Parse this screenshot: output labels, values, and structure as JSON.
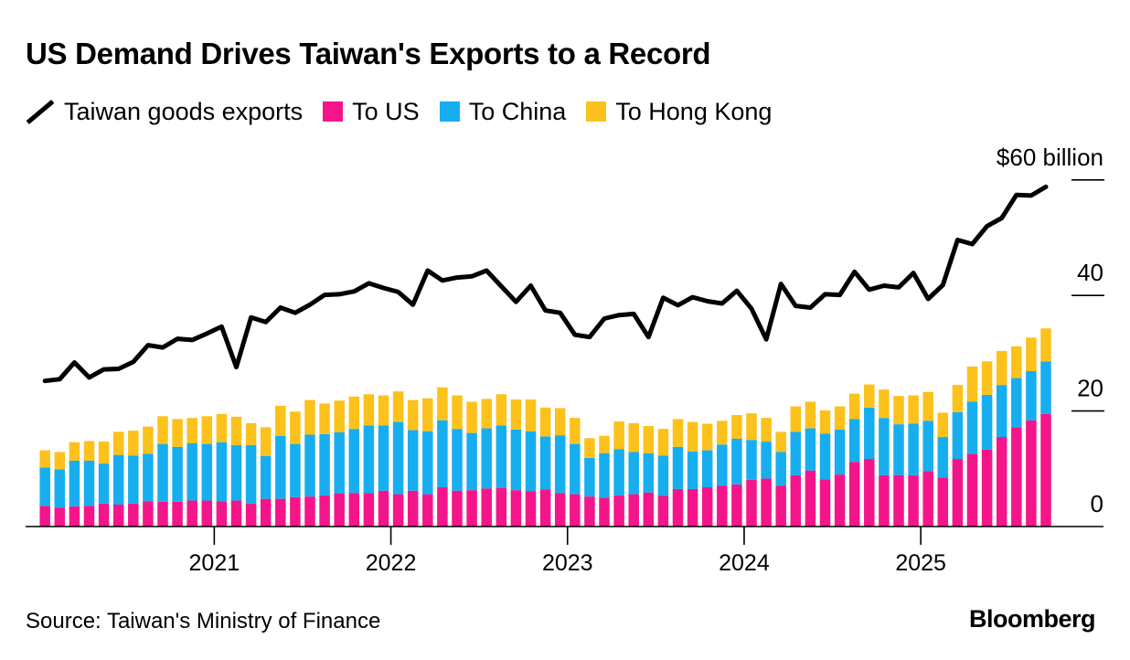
{
  "chart_data": {
    "type": "bar",
    "title": "US Demand Drives Taiwan's Exports to a Record",
    "xlabel": "",
    "ylabel": "",
    "ylim": [
      0,
      60
    ],
    "y_unit_label": "$60 billion",
    "y_ticks": [
      0,
      20,
      40,
      60
    ],
    "y_tick_labels": [
      "0",
      "20",
      "40",
      "$60 billion"
    ],
    "x_tick_labels": [
      "2021",
      "2022",
      "2023",
      "2024",
      "2025"
    ],
    "x_tick_month_index": [
      11,
      23,
      35,
      47,
      59
    ],
    "start_month": "2020-02",
    "stacked": true,
    "series": [
      {
        "name": "To US",
        "color": "#f5158a",
        "values": [
          3.6,
          3.3,
          3.5,
          3.6,
          4.0,
          3.8,
          4.0,
          4.4,
          4.3,
          4.3,
          4.5,
          4.5,
          4.4,
          4.5,
          4.0,
          4.8,
          4.8,
          5.1,
          5.2,
          5.4,
          5.7,
          5.8,
          5.8,
          6.2,
          5.6,
          6.2,
          5.6,
          6.8,
          6.2,
          6.3,
          6.6,
          6.7,
          6.3,
          6.1,
          6.4,
          5.8,
          5.6,
          5.2,
          5.0,
          5.4,
          5.6,
          5.9,
          5.3,
          6.5,
          6.5,
          6.8,
          7.1,
          7.3,
          8.1,
          8.3,
          7.1,
          8.9,
          9.7,
          8.2,
          9.0,
          11.2,
          11.7,
          8.9,
          8.9,
          8.9,
          9.6,
          8.5,
          11.7,
          12.6,
          13.3,
          15.5,
          17.2,
          18.4,
          19.5
        ]
      },
      {
        "name": "To China",
        "color": "#17aeef",
        "values": [
          6.6,
          6.6,
          7.9,
          7.8,
          6.9,
          8.6,
          8.3,
          8.2,
          10.0,
          9.5,
          9.9,
          9.8,
          10.2,
          9.6,
          10.1,
          7.4,
          10.9,
          9.2,
          10.7,
          10.6,
          10.6,
          11.1,
          11.7,
          11.3,
          12.5,
          10.5,
          10.9,
          11.6,
          10.7,
          9.9,
          10.4,
          10.8,
          10.5,
          10.4,
          9.2,
          10.0,
          8.7,
          6.7,
          7.7,
          8.0,
          7.3,
          6.8,
          7.0,
          7.3,
          6.5,
          6.4,
          7.1,
          7.9,
          6.9,
          6.4,
          5.8,
          7.5,
          7.3,
          7.9,
          7.8,
          7.4,
          8.9,
          9.9,
          8.8,
          8.9,
          8.7,
          7.0,
          8.1,
          9.0,
          9.5,
          9.0,
          8.5,
          8.5,
          9.1
        ]
      },
      {
        "name": "To Hong Kong",
        "color": "#fcc21b",
        "values": [
          3.0,
          3.0,
          3.2,
          3.4,
          3.8,
          4.0,
          4.3,
          4.7,
          4.8,
          4.8,
          4.4,
          4.8,
          4.9,
          4.9,
          3.8,
          5.0,
          5.2,
          5.6,
          6.0,
          5.3,
          5.5,
          5.6,
          5.4,
          5.2,
          5.3,
          5.2,
          5.7,
          5.7,
          5.8,
          5.4,
          5.1,
          5.4,
          5.2,
          5.5,
          5.0,
          4.7,
          4.5,
          3.4,
          3.0,
          4.8,
          5.0,
          4.7,
          4.6,
          4.8,
          5.1,
          4.6,
          4.1,
          4.1,
          4.6,
          4.1,
          3.5,
          4.4,
          4.6,
          4.0,
          4.0,
          4.4,
          4.0,
          4.9,
          4.9,
          4.9,
          5.0,
          4.2,
          4.7,
          6.1,
          5.8,
          5.9,
          5.5,
          5.8,
          5.7
        ]
      },
      {
        "name": "Taiwan goods exports",
        "color": "#000000",
        "type": "line",
        "values": [
          25.2,
          25.5,
          28.4,
          25.8,
          27.2,
          27.3,
          28.5,
          31.4,
          31.0,
          32.5,
          32.3,
          33.4,
          34.6,
          27.6,
          36.2,
          35.4,
          37.9,
          37.0,
          38.4,
          40.1,
          40.2,
          40.7,
          42.1,
          41.3,
          40.6,
          38.4,
          44.3,
          42.6,
          43.1,
          43.3,
          44.3,
          41.6,
          38.9,
          41.7,
          37.4,
          37.0,
          33.2,
          32.8,
          36.0,
          36.6,
          36.8,
          32.8,
          39.6,
          38.3,
          39.7,
          39.0,
          38.6,
          40.8,
          37.7,
          32.4,
          42.0,
          38.2,
          37.9,
          40.2,
          40.1,
          44.1,
          41.0,
          41.7,
          41.4,
          43.9,
          39.4,
          41.8,
          49.6,
          48.9,
          52.0,
          53.4,
          57.4,
          57.3,
          58.8
        ]
      }
    ],
    "legend": [
      "Taiwan goods exports",
      "To US",
      "To China",
      "To Hong Kong"
    ],
    "legend_position": "top-left"
  },
  "source": "Source: Taiwan's Ministry of Finance",
  "brand": "Bloomberg"
}
